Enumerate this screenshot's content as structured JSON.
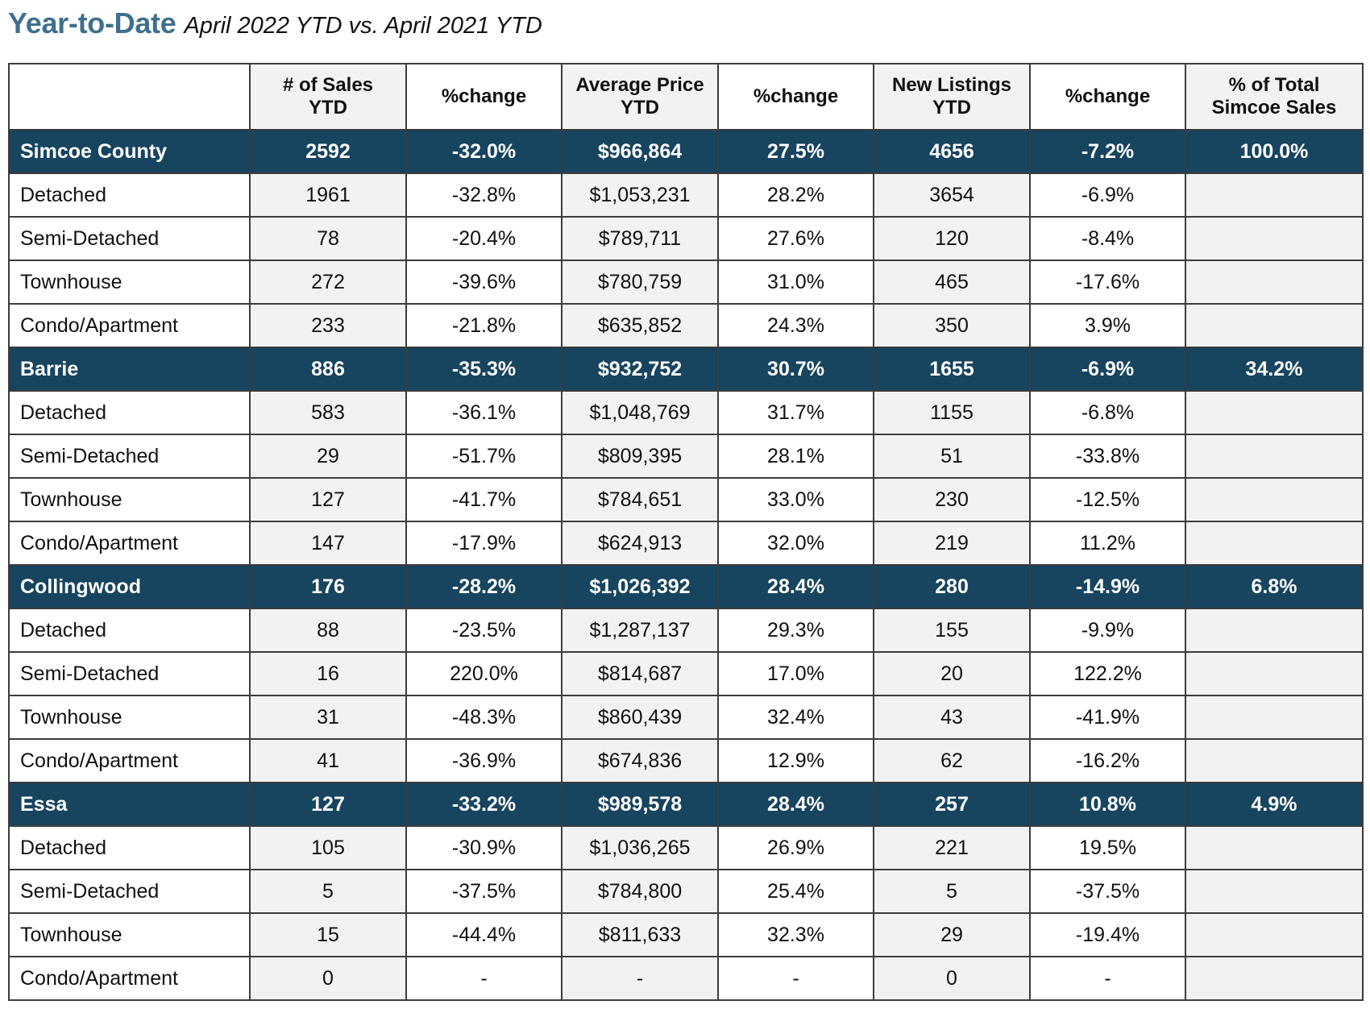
{
  "title": {
    "main": "Year-to-Date",
    "subtitle": "April 2022 YTD vs. April 2021 YTD"
  },
  "table": {
    "headers": [
      [
        ""
      ],
      [
        "# of Sales",
        "YTD"
      ],
      [
        "%change"
      ],
      [
        "Average Price",
        "YTD"
      ],
      [
        "%change"
      ],
      [
        "New Listings",
        "YTD"
      ],
      [
        "%change"
      ],
      [
        "% of Total",
        "Simcoe Sales"
      ]
    ],
    "rows": [
      {
        "type": "region",
        "cells": [
          "Simcoe County",
          "2592",
          "-32.0%",
          "$966,864",
          "27.5%",
          "4656",
          "-7.2%",
          "100.0%"
        ]
      },
      {
        "type": "sub",
        "cells": [
          "Detached",
          "1961",
          "-32.8%",
          "$1,053,231",
          "28.2%",
          "3654",
          "-6.9%",
          ""
        ]
      },
      {
        "type": "sub",
        "cells": [
          "Semi-Detached",
          "78",
          "-20.4%",
          "$789,711",
          "27.6%",
          "120",
          "-8.4%",
          ""
        ]
      },
      {
        "type": "sub",
        "cells": [
          "Townhouse",
          "272",
          "-39.6%",
          "$780,759",
          "31.0%",
          "465",
          "-17.6%",
          ""
        ]
      },
      {
        "type": "sub",
        "cells": [
          "Condo/Apartment",
          "233",
          "-21.8%",
          "$635,852",
          "24.3%",
          "350",
          "3.9%",
          ""
        ]
      },
      {
        "type": "region",
        "cells": [
          "Barrie",
          "886",
          "-35.3%",
          "$932,752",
          "30.7%",
          "1655",
          "-6.9%",
          "34.2%"
        ]
      },
      {
        "type": "sub",
        "cells": [
          "Detached",
          "583",
          "-36.1%",
          "$1,048,769",
          "31.7%",
          "1155",
          "-6.8%",
          ""
        ]
      },
      {
        "type": "sub",
        "cells": [
          "Semi-Detached",
          "29",
          "-51.7%",
          "$809,395",
          "28.1%",
          "51",
          "-33.8%",
          ""
        ]
      },
      {
        "type": "sub",
        "cells": [
          "Townhouse",
          "127",
          "-41.7%",
          "$784,651",
          "33.0%",
          "230",
          "-12.5%",
          ""
        ]
      },
      {
        "type": "sub",
        "cells": [
          "Condo/Apartment",
          "147",
          "-17.9%",
          "$624,913",
          "32.0%",
          "219",
          "11.2%",
          ""
        ]
      },
      {
        "type": "region",
        "cells": [
          "Collingwood",
          "176",
          "-28.2%",
          "$1,026,392",
          "28.4%",
          "280",
          "-14.9%",
          "6.8%"
        ]
      },
      {
        "type": "sub",
        "cells": [
          "Detached",
          "88",
          "-23.5%",
          "$1,287,137",
          "29.3%",
          "155",
          "-9.9%",
          ""
        ]
      },
      {
        "type": "sub",
        "cells": [
          "Semi-Detached",
          "16",
          "220.0%",
          "$814,687",
          "17.0%",
          "20",
          "122.2%",
          ""
        ]
      },
      {
        "type": "sub",
        "cells": [
          "Townhouse",
          "31",
          "-48.3%",
          "$860,439",
          "32.4%",
          "43",
          "-41.9%",
          ""
        ]
      },
      {
        "type": "sub",
        "cells": [
          "Condo/Apartment",
          "41",
          "-36.9%",
          "$674,836",
          "12.9%",
          "62",
          "-16.2%",
          ""
        ]
      },
      {
        "type": "region",
        "cells": [
          "Essa",
          "127",
          "-33.2%",
          "$989,578",
          "28.4%",
          "257",
          "10.8%",
          "4.9%"
        ]
      },
      {
        "type": "sub",
        "cells": [
          "Detached",
          "105",
          "-30.9%",
          "$1,036,265",
          "26.9%",
          "221",
          "19.5%",
          ""
        ]
      },
      {
        "type": "sub",
        "cells": [
          "Semi-Detached",
          "5",
          "-37.5%",
          "$784,800",
          "25.4%",
          "5",
          "-37.5%",
          ""
        ]
      },
      {
        "type": "sub",
        "cells": [
          "Townhouse",
          "15",
          "-44.4%",
          "$811,633",
          "32.3%",
          "29",
          "-19.4%",
          ""
        ]
      },
      {
        "type": "sub",
        "cells": [
          "Condo/Apartment",
          "0",
          "-",
          "-",
          "-",
          "0",
          "-",
          ""
        ]
      }
    ]
  },
  "colors": {
    "title_accent": "#3f6f8e",
    "region_row_bg": "#17445f",
    "region_row_text": "#ffffff",
    "alt_column_bg": "#f2f2f2",
    "border": "#3c3c3c"
  }
}
